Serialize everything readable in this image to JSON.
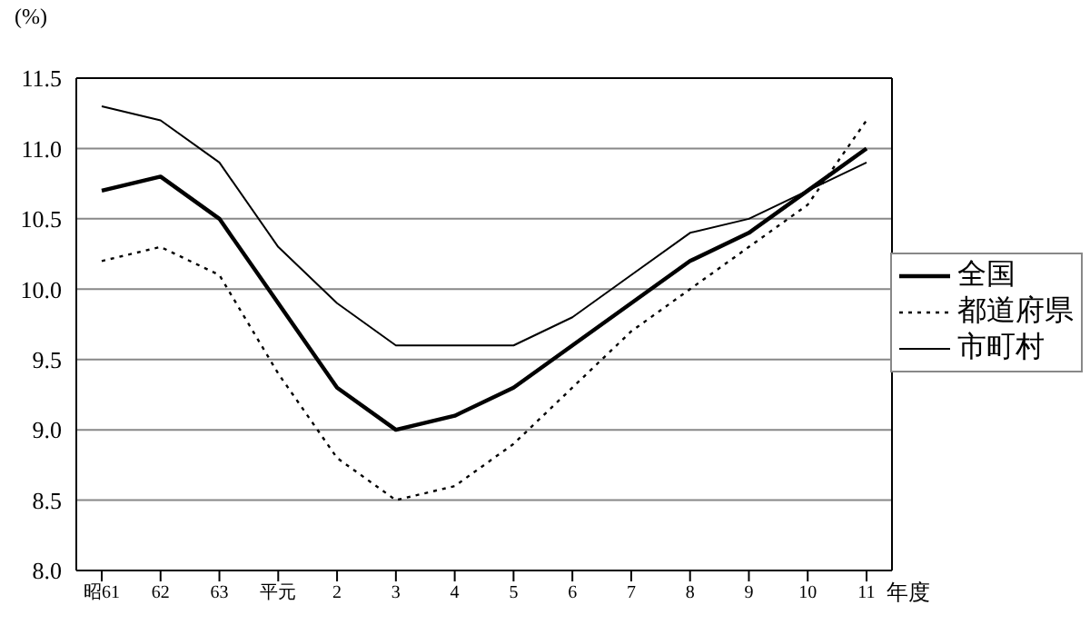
{
  "chart_data": {
    "type": "line",
    "ylabel": "(%)",
    "xlabel": "年度",
    "categories": [
      "昭61",
      "62",
      "63",
      "平元",
      "2",
      "3",
      "4",
      "5",
      "6",
      "7",
      "8",
      "9",
      "10",
      "11"
    ],
    "series": [
      {
        "name": "全国",
        "color": "#000000",
        "line_style": "solid",
        "values": [
          10.7,
          10.8,
          10.5,
          9.9,
          9.3,
          9.0,
          9.1,
          9.3,
          9.6,
          9.9,
          10.2,
          10.4,
          10.7,
          11.0
        ]
      },
      {
        "name": "都道府県",
        "color": "#000000",
        "line_style": "dotted",
        "values": [
          10.2,
          10.3,
          10.1,
          9.4,
          8.8,
          8.5,
          8.6,
          8.9,
          9.3,
          9.7,
          10.0,
          10.3,
          10.6,
          11.2
        ]
      },
      {
        "name": "市町村",
        "color": "#000000",
        "line_style": "solid",
        "values": [
          11.3,
          11.2,
          10.9,
          10.3,
          9.9,
          9.6,
          9.6,
          9.6,
          9.8,
          10.1,
          10.4,
          10.5,
          10.7,
          10.9
        ]
      }
    ],
    "ylim": [
      8.0,
      11.5
    ],
    "yticks": [
      {
        "value": 8,
        "label": "8.0"
      },
      {
        "value": 8.5,
        "label": "8.5"
      },
      {
        "value": 9,
        "label": "9.0"
      },
      {
        "value": 9.5,
        "label": "9.5"
      },
      {
        "value": 10,
        "label": "10.0"
      },
      {
        "value": 10.5,
        "label": "10.5"
      },
      {
        "value": 11,
        "label": "11.0"
      },
      {
        "value": 11.5,
        "label": "11.5"
      }
    ],
    "grid": "y",
    "legend": "right",
    "marker": "none"
  }
}
